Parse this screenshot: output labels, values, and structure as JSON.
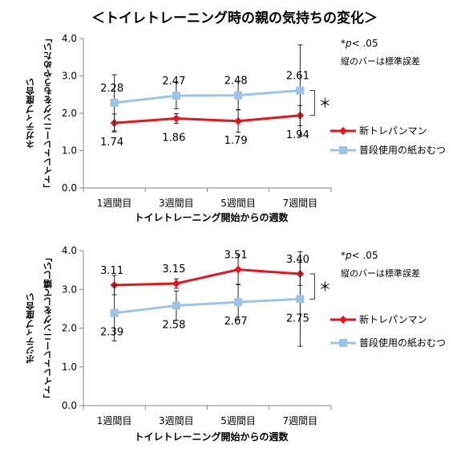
{
  "page": {
    "title": "＜トイレトレーニング時の親の気持ちの変化＞"
  },
  "chart_data": [
    {
      "type": "line",
      "ylabel_lines": [
        "「トイレトレーニングをもうやめたい」",
        "ネガティブ度合い"
      ],
      "xlabel": "トイレトレーニング開始からの週数",
      "categories": [
        "1週間目",
        "3週間目",
        "5週間目",
        "7週間目"
      ],
      "ylim": [
        0,
        4
      ],
      "yticks": [
        "0.0",
        "1.0",
        "2.0",
        "3.0",
        "4.0"
      ],
      "grid": false,
      "legend_position": "right",
      "annotation": {
        "p_symbol": "*",
        "p_italic": "p",
        "p_rest": "< .05",
        "note": "縦のバーは標準誤差",
        "sig_mark": "＊"
      },
      "series": [
        {
          "name": "新トレパンマン",
          "color": "#e8141c",
          "marker": "diamond",
          "values": [
            1.74,
            1.86,
            1.79,
            1.94
          ],
          "labels": [
            "1.74",
            "1.86",
            "1.79",
            "1.94"
          ],
          "error": [
            0.24,
            0.13,
            0.3,
            0.27
          ]
        },
        {
          "name": "普段使用の紙おむつ",
          "color": "#9dc3e6",
          "marker": "square",
          "values": [
            2.28,
            2.47,
            2.48,
            2.61
          ],
          "labels": [
            "2.28",
            "2.47",
            "2.48",
            "2.61"
          ],
          "error": [
            0.75,
            0.35,
            0.38,
            1.22
          ]
        }
      ]
    },
    {
      "type": "line",
      "ylabel_lines": [
        "「トイレトレーニングをして嬉しい」",
        "ポジティブ度合い"
      ],
      "xlabel": "トイレトレーニング開始からの週数",
      "categories": [
        "1週間目",
        "3週間目",
        "5週間目",
        "7週間目"
      ],
      "ylim": [
        0,
        4
      ],
      "yticks": [
        "0.0",
        "1.0",
        "2.0",
        "3.0",
        "4.0"
      ],
      "grid": false,
      "legend_position": "right",
      "annotation": {
        "p_symbol": "*",
        "p_italic": "p",
        "p_rest": "< .05",
        "note": "縦のバーは標準誤差",
        "sig_mark": "＊"
      },
      "series": [
        {
          "name": "新トレパンマン",
          "color": "#e8141c",
          "marker": "diamond",
          "values": [
            3.11,
            3.15,
            3.51,
            3.4
          ],
          "labels": [
            "3.11",
            "3.15",
            "3.51",
            "3.40"
          ],
          "error": [
            0.25,
            0.12,
            0.38,
            0.3
          ]
        },
        {
          "name": "普段使用の紙おむつ",
          "color": "#9dc3e6",
          "marker": "square",
          "values": [
            2.39,
            2.58,
            2.67,
            2.75
          ],
          "labels": [
            "2.39",
            "2.58",
            "2.67",
            "2.75"
          ],
          "error": [
            0.72,
            0.38,
            0.45,
            1.22
          ]
        }
      ]
    }
  ]
}
